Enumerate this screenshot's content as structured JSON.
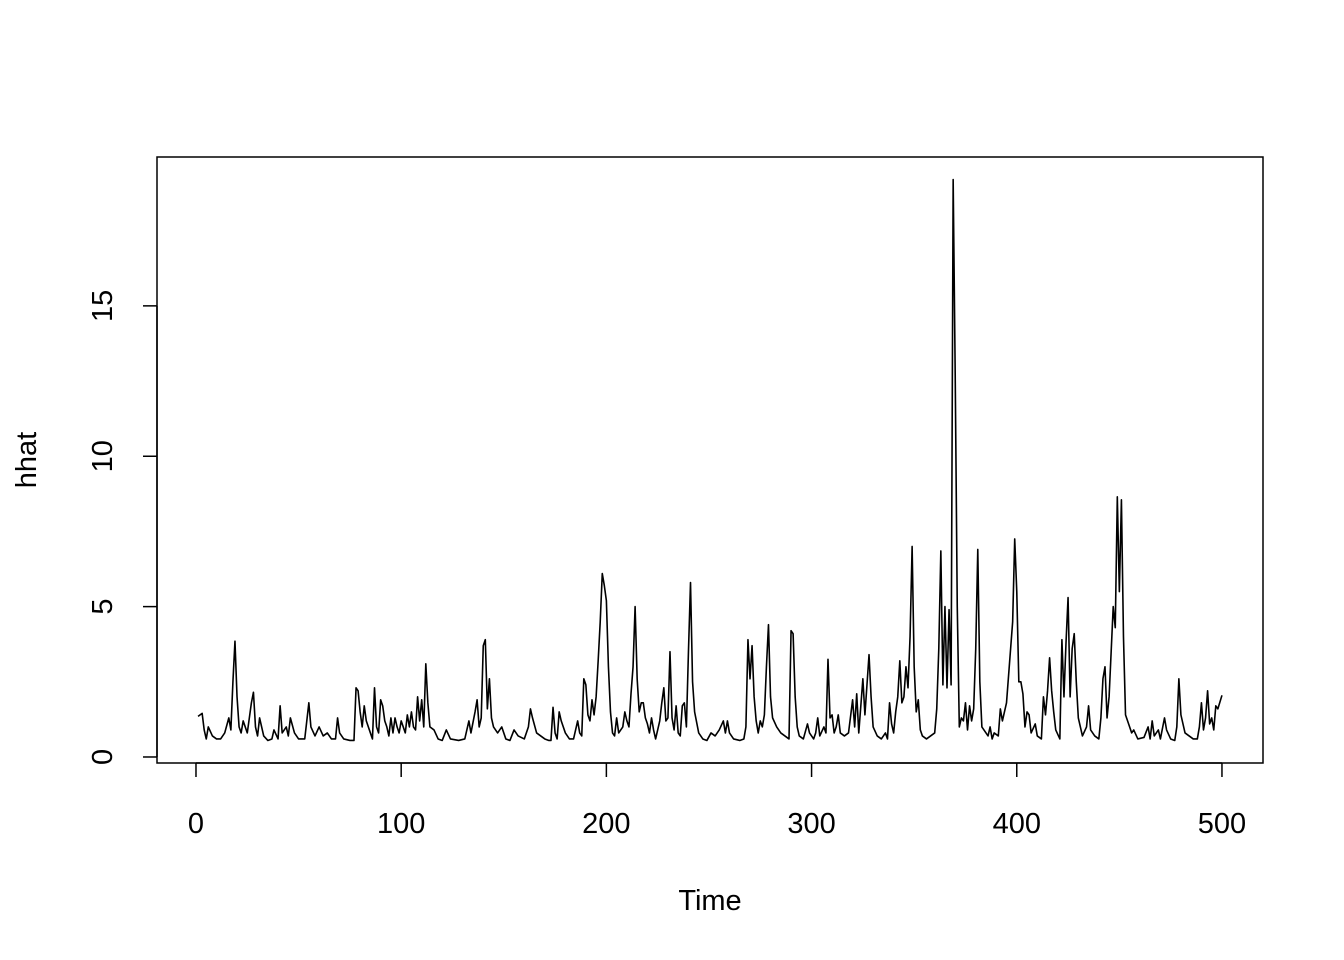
{
  "chart_data": {
    "type": "line",
    "xlabel": "Time",
    "ylabel": "hhat",
    "color": "#000000",
    "xlim": [
      -19,
      520
    ],
    "ylim": [
      -0.2,
      19.95
    ],
    "xticks": [
      0,
      100,
      200,
      300,
      400,
      500
    ],
    "yticks": [
      0,
      5,
      10,
      15
    ],
    "x": [
      1,
      3,
      4,
      5,
      6,
      8,
      10,
      12,
      14,
      16,
      17,
      18,
      19,
      20,
      21,
      22,
      23,
      25,
      27,
      28,
      29,
      30,
      31,
      33,
      35,
      37,
      38,
      40,
      41,
      42,
      44,
      45,
      46,
      48,
      50,
      53,
      55,
      56,
      58,
      60,
      62,
      64,
      66,
      68,
      69,
      70,
      72,
      75,
      77,
      78,
      79,
      80,
      81,
      82,
      83,
      85,
      86,
      87,
      88,
      89,
      90,
      91,
      92,
      93,
      94,
      95,
      96,
      97,
      98,
      99,
      100,
      102,
      103,
      104,
      105,
      106,
      107,
      108,
      109,
      110,
      111,
      112,
      113,
      114,
      116,
      118,
      120,
      122,
      124,
      128,
      131,
      133,
      134,
      136,
      137,
      138,
      139,
      140,
      141,
      142,
      143,
      144,
      145,
      147,
      149,
      151,
      153,
      155,
      157,
      160,
      162,
      163,
      164,
      166,
      168,
      170,
      172,
      173,
      174,
      175,
      176,
      177,
      178,
      180,
      182,
      184,
      186,
      187,
      188,
      189,
      190,
      191,
      192,
      193,
      194,
      195,
      196,
      197,
      198,
      199,
      200,
      201,
      202,
      203,
      204,
      205,
      206,
      208,
      209,
      210,
      211,
      212,
      213,
      214,
      215,
      216,
      217,
      218,
      219,
      220,
      221,
      222,
      223,
      224,
      226,
      227,
      228,
      229,
      230,
      231,
      232,
      233,
      234,
      235,
      236,
      237,
      238,
      239,
      240,
      241,
      242,
      243,
      245,
      247,
      249,
      251,
      253,
      255,
      257,
      258,
      259,
      260,
      262,
      265,
      267,
      268,
      269,
      270,
      271,
      272,
      273,
      274,
      275,
      276,
      277,
      278,
      279,
      280,
      281,
      283,
      285,
      287,
      289,
      290,
      291,
      292,
      293,
      294,
      296,
      298,
      299,
      301,
      302,
      303,
      304,
      306,
      307,
      308,
      309,
      310,
      311,
      312,
      313,
      314,
      316,
      318,
      320,
      321,
      322,
      323,
      325,
      326,
      328,
      329,
      330,
      332,
      334,
      336,
      337,
      338,
      339,
      340,
      341,
      342,
      343,
      344,
      345,
      346,
      347,
      348,
      349,
      350,
      351,
      352,
      353,
      354,
      356,
      358,
      360,
      361,
      362,
      363,
      364,
      365,
      366,
      367,
      368,
      369,
      370,
      371,
      372,
      373,
      374,
      375,
      376,
      377,
      378,
      379,
      380,
      381,
      382,
      383,
      384,
      386,
      387,
      388,
      389,
      391,
      392,
      393,
      395,
      398,
      399,
      400,
      401,
      402,
      403,
      404,
      405,
      406,
      407,
      409,
      410,
      412,
      413,
      414,
      415,
      416,
      417,
      418,
      419,
      421,
      422,
      423,
      424,
      425,
      426,
      427,
      428,
      429,
      430,
      432,
      434,
      435,
      436,
      438,
      440,
      441,
      442,
      443,
      444,
      445,
      446,
      447,
      448,
      449,
      450,
      451,
      452,
      453,
      454,
      455,
      456,
      457,
      459,
      462,
      464,
      465,
      466,
      467,
      469,
      470,
      472,
      473,
      475,
      477,
      478,
      479,
      480,
      482,
      484,
      486,
      488,
      489,
      490,
      491,
      492,
      493,
      494,
      495,
      496,
      497,
      498,
      500
    ],
    "values": [
      1.35,
      1.45,
      0.9,
      0.6,
      1.0,
      0.7,
      0.6,
      0.6,
      0.8,
      1.3,
      0.9,
      2.5,
      3.85,
      2.0,
      1.0,
      0.8,
      1.2,
      0.8,
      1.8,
      2.15,
      1.0,
      0.7,
      1.3,
      0.7,
      0.55,
      0.6,
      0.9,
      0.6,
      1.7,
      0.8,
      1.0,
      0.7,
      1.3,
      0.8,
      0.6,
      0.6,
      1.8,
      1.0,
      0.7,
      1.0,
      0.7,
      0.8,
      0.6,
      0.6,
      1.3,
      0.8,
      0.6,
      0.55,
      0.55,
      2.3,
      2.2,
      1.5,
      1.0,
      1.7,
      1.2,
      0.8,
      0.6,
      2.3,
      1.0,
      0.8,
      1.9,
      1.7,
      1.2,
      1.0,
      0.7,
      1.3,
      0.8,
      1.3,
      1.0,
      0.8,
      1.2,
      0.8,
      1.4,
      1.0,
      1.5,
      1.0,
      0.9,
      2.0,
      1.2,
      1.9,
      1.0,
      3.1,
      1.8,
      1.0,
      0.9,
      0.6,
      0.55,
      0.9,
      0.6,
      0.55,
      0.6,
      1.2,
      0.8,
      1.5,
      1.9,
      1.0,
      1.3,
      3.7,
      3.9,
      1.6,
      2.6,
      1.3,
      1.0,
      0.8,
      1.0,
      0.6,
      0.55,
      0.9,
      0.7,
      0.6,
      1.0,
      1.6,
      1.3,
      0.8,
      0.7,
      0.6,
      0.55,
      0.55,
      1.65,
      0.8,
      0.6,
      1.5,
      1.2,
      0.8,
      0.6,
      0.6,
      1.2,
      0.8,
      0.7,
      2.6,
      2.4,
      1.4,
      1.2,
      1.9,
      1.4,
      2.0,
      3.2,
      4.5,
      6.1,
      5.7,
      5.2,
      3.0,
      1.5,
      0.8,
      0.7,
      1.3,
      0.8,
      1.0,
      1.5,
      1.2,
      1.0,
      2.1,
      3.0,
      5.0,
      2.6,
      1.5,
      1.8,
      1.8,
      1.3,
      1.1,
      0.8,
      1.3,
      0.9,
      0.6,
      1.2,
      1.8,
      2.3,
      1.2,
      1.3,
      3.5,
      1.3,
      0.9,
      1.7,
      0.8,
      0.7,
      1.7,
      1.8,
      1.0,
      3.5,
      5.8,
      2.5,
      1.5,
      0.8,
      0.6,
      0.55,
      0.8,
      0.7,
      0.9,
      1.2,
      0.8,
      1.2,
      0.8,
      0.6,
      0.55,
      0.6,
      1.0,
      3.9,
      2.6,
      3.7,
      2.0,
      1.2,
      0.8,
      1.2,
      1.0,
      1.4,
      3.0,
      4.4,
      2.0,
      1.3,
      1.0,
      0.8,
      0.7,
      0.6,
      4.2,
      4.1,
      2.0,
      1.0,
      0.7,
      0.6,
      1.1,
      0.8,
      0.6,
      0.8,
      1.3,
      0.7,
      1.0,
      0.8,
      3.25,
      1.3,
      1.4,
      0.8,
      1.0,
      1.4,
      0.8,
      0.7,
      0.8,
      1.9,
      1.0,
      2.1,
      0.8,
      2.6,
      1.4,
      3.4,
      2.0,
      1.0,
      0.7,
      0.6,
      0.8,
      0.6,
      1.8,
      1.1,
      0.8,
      1.5,
      2.0,
      3.2,
      1.8,
      2.0,
      3.0,
      2.3,
      4.0,
      7.0,
      3.0,
      1.5,
      1.9,
      0.9,
      0.7,
      0.6,
      0.7,
      0.8,
      1.6,
      3.6,
      6.85,
      2.4,
      5.0,
      2.3,
      4.9,
      2.4,
      19.2,
      12.7,
      5.0,
      1.0,
      1.3,
      1.2,
      1.8,
      0.9,
      1.7,
      1.2,
      1.6,
      3.6,
      6.9,
      2.5,
      1.0,
      0.9,
      0.7,
      1.0,
      0.6,
      0.8,
      0.7,
      1.6,
      1.2,
      1.8,
      4.5,
      7.25,
      5.5,
      2.5,
      2.5,
      2.1,
      1.0,
      1.5,
      1.4,
      0.8,
      1.1,
      0.7,
      0.6,
      2.0,
      1.4,
      2.2,
      3.3,
      2.2,
      1.5,
      0.9,
      0.6,
      3.9,
      2.0,
      3.8,
      5.3,
      2.0,
      3.6,
      4.1,
      2.5,
      1.3,
      0.7,
      1.0,
      1.7,
      0.9,
      0.7,
      0.6,
      1.3,
      2.6,
      3.0,
      1.3,
      2.0,
      3.5,
      5.0,
      4.3,
      8.65,
      5.5,
      8.55,
      4.0,
      1.4,
      1.2,
      1.0,
      0.8,
      0.9,
      0.6,
      0.65,
      1.0,
      0.6,
      1.2,
      0.7,
      0.9,
      0.6,
      1.3,
      0.9,
      0.6,
      0.55,
      1.0,
      2.6,
      1.4,
      0.8,
      0.7,
      0.6,
      0.6,
      1.0,
      1.8,
      0.9,
      1.3,
      2.2,
      1.1,
      1.3,
      0.9,
      1.7,
      1.6,
      2.05
    ]
  }
}
